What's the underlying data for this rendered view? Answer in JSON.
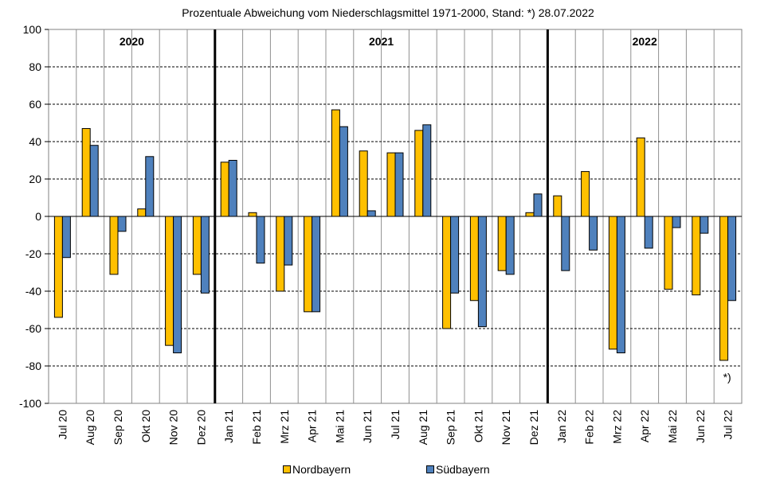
{
  "chart_data": {
    "type": "bar",
    "title": "Prozentuale Abweichung vom Niederschlagsmittel 1971-2000, Stand: *) 28.07.2022",
    "categories": [
      "Jul 20",
      "Aug 20",
      "Sep 20",
      "Okt 20",
      "Nov 20",
      "Dez 20",
      "Jan 21",
      "Feb 21",
      "Mrz 21",
      "Apr 21",
      "Mai 21",
      "Jun 21",
      "Jul 21",
      "Aug 21",
      "Sep 21",
      "Okt 21",
      "Nov 21",
      "Dez 21",
      "Jan 22",
      "Feb 22",
      "Mrz 22",
      "Apr 22",
      "Mai 22",
      "Jun 22",
      "Jul 22"
    ],
    "series": [
      {
        "name": "Nordbayern",
        "color": "#FFC000",
        "values": [
          -54,
          47,
          -31,
          4,
          -69,
          -31,
          29,
          2,
          -40,
          -51,
          57,
          35,
          34,
          46,
          -60,
          -45,
          -29,
          2,
          11,
          24,
          -71,
          42,
          -39,
          -42,
          -77
        ]
      },
      {
        "name": "Südbayern",
        "color": "#4F81BD",
        "values": [
          -22,
          38,
          -8,
          32,
          -73,
          -41,
          30,
          -25,
          -26,
          -51,
          48,
          3,
          34,
          49,
          -41,
          -59,
          -31,
          12,
          -29,
          -18,
          -73,
          -17,
          -6,
          -9,
          -45
        ]
      }
    ],
    "ylim": [
      -100,
      100
    ],
    "yticks": [
      100,
      80,
      60,
      40,
      20,
      0,
      -20,
      -40,
      -60,
      -80,
      -100
    ],
    "grid": true,
    "year_labels": [
      {
        "label": "2020",
        "start": 0,
        "end": 6
      },
      {
        "label": "2021",
        "start": 6,
        "end": 18
      },
      {
        "label": "2022",
        "start": 18,
        "end": 25
      }
    ],
    "year_separators_after": [
      6,
      18
    ],
    "annotation": {
      "text": "*)",
      "category_index": 24
    },
    "legend_position": "bottom"
  }
}
